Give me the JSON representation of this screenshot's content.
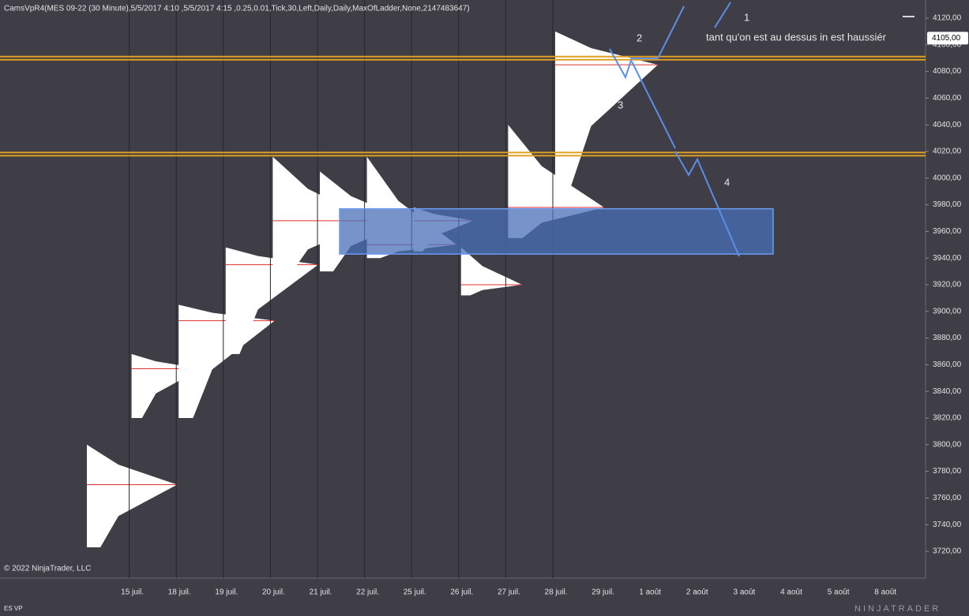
{
  "chart_data": {
    "type": "profile",
    "title": "CamsVpR4(MES 09-22 (30 Minute),5/5/2017 4:10 ,5/5/2017 4:15 ,0.25,0.01,Tick,30,Left,Daily,Daily,MaxOfLadder,None,2147483647)",
    "categories": [
      null,
      "15 juil.",
      "18 juil.",
      "19 juil.",
      "20 juil.",
      "21 juil.",
      "22 juil.",
      "25 juil.",
      "26 juil.",
      "27 juil.",
      "28 juil.",
      "29 juil.",
      "1 août",
      "2 août",
      "3 août",
      "4 août",
      "5 août",
      "8 août"
    ],
    "profile_low": [
      3723,
      3820,
      3820,
      3868,
      3925,
      3930,
      3940,
      3945,
      3912,
      3955,
      3993
    ],
    "profile_high": [
      3800,
      3868,
      3905,
      3948,
      4016,
      4005,
      4016,
      3978,
      3948,
      4040,
      4110
    ],
    "profile_poc": [
      3770,
      3857,
      3893,
      3935,
      3968,
      3968,
      3950,
      3968,
      3920,
      3978,
      4085
    ],
    "levels": [
      4090,
      4018
    ],
    "level_color": "#e0a020",
    "zone": [
      3943,
      3977
    ],
    "zone_color": "#4a6fb8",
    "current_price": {
      "value": 4105,
      "label": "4105,00"
    },
    "ylim": [
      3705,
      4130
    ],
    "yticks": [
      {
        "value": 3720,
        "label": "3720,00"
      },
      {
        "value": 3740,
        "label": "3740,00"
      },
      {
        "value": 3760,
        "label": "3760,00"
      },
      {
        "value": 3780,
        "label": "3780,00"
      },
      {
        "value": 3800,
        "label": "3800,00"
      },
      {
        "value": 3820,
        "label": "3820,00"
      },
      {
        "value": 3840,
        "label": "3840,00"
      },
      {
        "value": 3860,
        "label": "3860,00"
      },
      {
        "value": 3880,
        "label": "3880,00"
      },
      {
        "value": 3900,
        "label": "3900,00"
      },
      {
        "value": 3920,
        "label": "3920,00"
      },
      {
        "value": 3940,
        "label": "3940,00"
      },
      {
        "value": 3960,
        "label": "3960,00"
      },
      {
        "value": 3980,
        "label": "3980,00"
      },
      {
        "value": 4000,
        "label": "4000,00"
      },
      {
        "value": 4020,
        "label": "4020,00"
      },
      {
        "value": 4040,
        "label": "4040,00"
      },
      {
        "value": 4060,
        "label": "4060,00"
      },
      {
        "value": 4080,
        "label": "4080,00"
      },
      {
        "value": 4100,
        "label": "4100,00"
      },
      {
        "value": 4120,
        "label": "4120,00"
      }
    ],
    "annotations": [
      "1",
      "2",
      "3",
      "4",
      "tant qu'on est au dessus in est  haussiér"
    ],
    "copyright": "© 2022 NinjaTrader, LLC",
    "instrument_tag": "ES VP",
    "logo": "NINJATRADER"
  }
}
